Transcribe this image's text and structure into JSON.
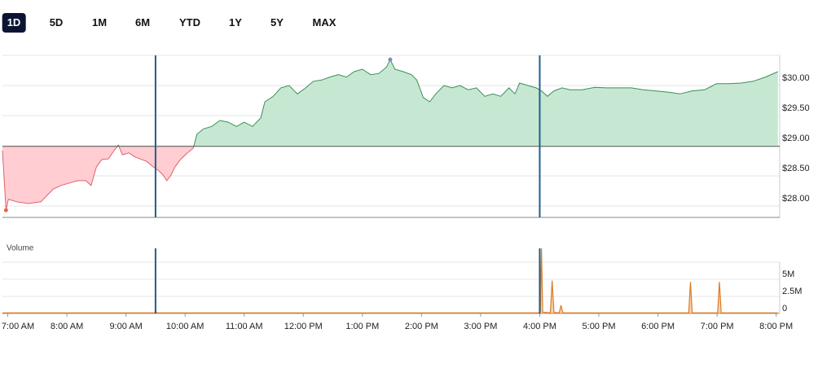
{
  "ranges": [
    "1D",
    "5D",
    "1M",
    "6M",
    "YTD",
    "1Y",
    "5Y",
    "MAX"
  ],
  "selected_range": "1D",
  "chart_data": [
    {
      "type": "price-area",
      "x": [
        6.91,
        6.97,
        7.01,
        7.15,
        7.35,
        7.56,
        7.67,
        7.77,
        7.9,
        8.04,
        8.18,
        8.32,
        8.41,
        8.5,
        8.59,
        8.7,
        8.8,
        8.87,
        8.94,
        9.05,
        9.14,
        9.24,
        9.35,
        9.46,
        9.56,
        9.63,
        9.69,
        9.76,
        9.83,
        9.93,
        10.04,
        10.14,
        10.2,
        10.31,
        10.45,
        10.59,
        10.73,
        10.87,
        11.0,
        11.14,
        11.28,
        11.35,
        11.49,
        11.62,
        11.76,
        11.9,
        12.04,
        12.17,
        12.31,
        12.45,
        12.59,
        12.73,
        12.86,
        13.0,
        13.14,
        13.28,
        13.41,
        13.47,
        13.55,
        13.69,
        13.83,
        13.92,
        14.03,
        14.14,
        14.24,
        14.38,
        14.52,
        14.65,
        14.79,
        14.93,
        15.07,
        15.21,
        15.34,
        15.48,
        15.58,
        15.66,
        15.8,
        15.94,
        16.03,
        16.13,
        16.24,
        16.38,
        16.51,
        16.72,
        16.93,
        17.13,
        17.34,
        17.55,
        17.75,
        17.96,
        18.17,
        18.37,
        18.58,
        18.79,
        18.99,
        19.2,
        19.41,
        19.61,
        19.82,
        20.03
      ],
      "values": [
        28.92,
        27.93,
        28.11,
        28.07,
        28.04,
        28.07,
        28.18,
        28.28,
        28.34,
        28.38,
        28.42,
        28.42,
        28.34,
        28.65,
        28.77,
        28.78,
        28.92,
        29.01,
        28.85,
        28.88,
        28.82,
        28.78,
        28.74,
        28.65,
        28.58,
        28.51,
        28.42,
        28.51,
        28.65,
        28.78,
        28.88,
        28.96,
        29.19,
        29.28,
        29.32,
        29.42,
        29.39,
        29.32,
        29.39,
        29.32,
        29.46,
        29.73,
        29.82,
        29.96,
        30.0,
        29.86,
        29.96,
        30.07,
        30.09,
        30.14,
        30.18,
        30.14,
        30.23,
        30.27,
        30.18,
        30.2,
        30.31,
        30.43,
        30.27,
        30.23,
        30.18,
        30.09,
        29.8,
        29.73,
        29.86,
        30.0,
        29.96,
        30.0,
        29.93,
        29.96,
        29.82,
        29.86,
        29.82,
        29.96,
        29.86,
        30.04,
        30.0,
        29.96,
        29.91,
        29.82,
        29.91,
        29.96,
        29.93,
        29.93,
        29.97,
        29.96,
        29.96,
        29.96,
        29.93,
        29.91,
        29.89,
        29.86,
        29.91,
        29.93,
        30.03,
        30.03,
        30.04,
        30.07,
        30.14,
        30.23
      ],
      "previous_close": 28.99,
      "session_lines": [
        9.5,
        16.0
      ],
      "up_color": "#3a8f56",
      "up_fill": "#c6e8d3",
      "down_color": "#e0626a",
      "down_fill": "#ffcdd2",
      "low_color": "#f0624d",
      "high_color": "#7b8fbf",
      "xlim": [
        6.91,
        20.06
      ],
      "ylim": [
        27.81,
        30.5
      ],
      "yticks": [
        {
          "value": 30,
          "label": "$30.00"
        },
        {
          "value": 29.5,
          "label": "$29.50"
        },
        {
          "value": 29,
          "label": "$29.00"
        },
        {
          "value": 28.5,
          "label": "$28.50"
        },
        {
          "value": 28,
          "label": "$28.00"
        }
      ],
      "grid": true
    },
    {
      "type": "volume",
      "title": "Volume",
      "x": [
        6.91,
        9.49,
        9.5,
        9.52,
        15.98,
        16.01,
        16.03,
        16.05,
        16.18,
        16.21,
        16.24,
        16.33,
        16.36,
        16.39,
        18.52,
        18.55,
        18.58,
        19.01,
        19.04,
        19.07,
        20.03
      ],
      "values": [
        100000,
        100000,
        400000,
        100000,
        100000,
        300000,
        9500000,
        200000,
        100000,
        4800000,
        150000,
        100000,
        1200000,
        100000,
        100000,
        4600000,
        100000,
        100000,
        4600000,
        100000,
        100000
      ],
      "color": "#e07b24",
      "session_lines": [
        9.5,
        16.0
      ],
      "xlim": [
        6.91,
        20.06
      ],
      "ylim": [
        0,
        9500000
      ],
      "yticks": [
        {
          "value": 5000000,
          "label": "5M"
        },
        {
          "value": 2500000,
          "label": "2.5M"
        },
        0
      ],
      "xticks": [
        {
          "value": 7,
          "label": "7:00 AM"
        },
        {
          "value": 8,
          "label": "8:00 AM"
        },
        {
          "value": 9,
          "label": "9:00 AM"
        },
        {
          "value": 10,
          "label": "10:00 AM"
        },
        {
          "value": 11,
          "label": "11:00 AM"
        },
        {
          "value": 12,
          "label": "12:00 PM"
        },
        {
          "value": 13,
          "label": "1:00 PM"
        },
        {
          "value": 14,
          "label": "2:00 PM"
        },
        {
          "value": 15,
          "label": "3:00 PM"
        },
        {
          "value": 16,
          "label": "4:00 PM"
        },
        {
          "value": 17,
          "label": "5:00 PM"
        },
        {
          "value": 18,
          "label": "6:00 PM"
        },
        {
          "value": 19,
          "label": "7:00 PM"
        },
        {
          "value": 20,
          "label": "8:00 PM"
        }
      ],
      "grid": true
    }
  ]
}
